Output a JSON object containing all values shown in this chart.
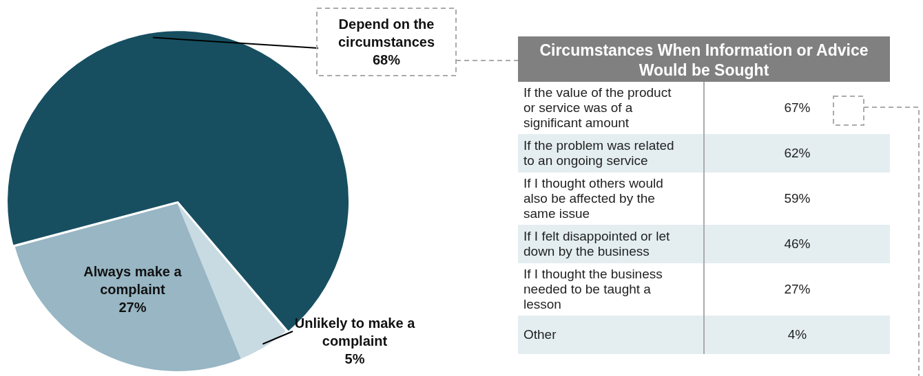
{
  "chart_data": [
    {
      "type": "pie",
      "categories": [
        "Depend on the circumstances",
        "Unlikely to make a complaint",
        "Always make a complaint"
      ],
      "values": [
        68,
        5,
        27
      ],
      "colors": [
        "#174f61",
        "#c9dbe2",
        "#98b6c4"
      ],
      "value_labels": [
        "68%",
        "5%",
        "27%"
      ],
      "legend": false
    },
    {
      "type": "other",
      "title": "Circumstances When Information or Advice Would be Sought",
      "categories": [
        "If the value of the product or service was of a significant amount",
        "If the problem was related to an ongoing service",
        "If I thought others would also be affected by the same issue",
        "If I felt disappointed or let down by the business",
        "If I thought the business needed to be taught a lesson",
        "Other"
      ],
      "values": [
        67,
        62,
        59,
        46,
        27,
        4
      ],
      "value_labels": [
        "67%",
        "62%",
        "59%",
        "46%",
        "27%",
        "4%"
      ]
    }
  ]
}
